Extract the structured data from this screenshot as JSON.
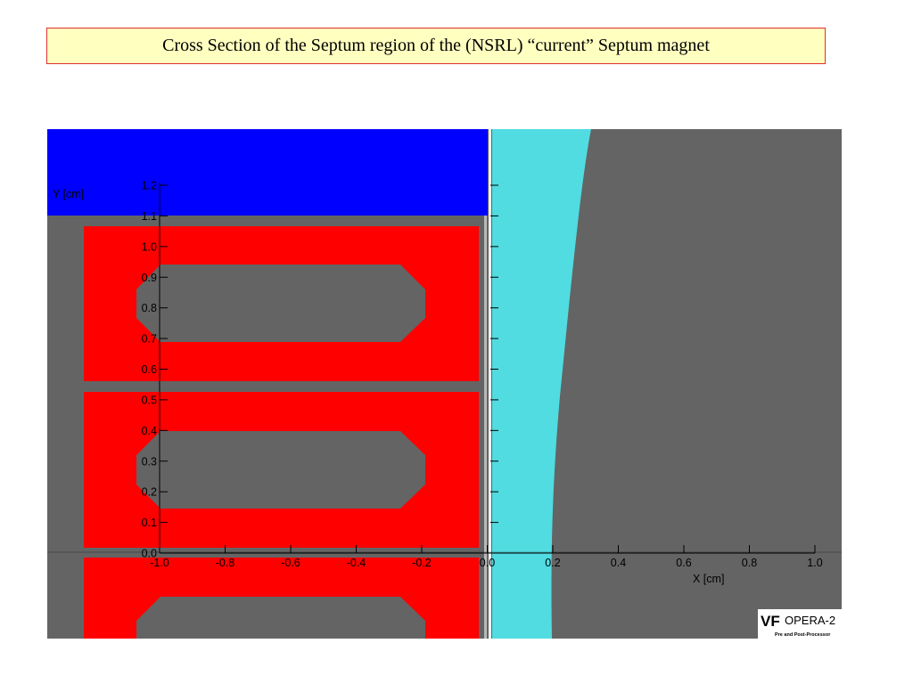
{
  "slide": {
    "title": "Cross Section of the Septum region of the (NSRL) “current” Septum  magnet"
  },
  "plot": {
    "x_axis_label": "X [cm]",
    "y_axis_label": "Y [cm]",
    "x_ticks": [
      "-1.0",
      "-0.8",
      "-0.6",
      "-0.4",
      "-0.2",
      "0.0",
      "0.2",
      "0.4",
      "0.6",
      "0.8",
      "1.0"
    ],
    "y_ticks": [
      "0.0",
      "0.1",
      "0.2",
      "0.3",
      "0.4",
      "0.5",
      "0.6",
      "0.7",
      "0.8",
      "0.9",
      "1.0",
      "1.1",
      "1.2"
    ],
    "x_range": [
      -1.0,
      1.0
    ],
    "y_range": [
      0.0,
      1.2
    ],
    "colors": {
      "background": "#646464",
      "steel_block": "#0000ff",
      "conductor": "#ff0000",
      "gap_region": "#50dce1",
      "septum_line": "#ffffff"
    }
  },
  "logo": {
    "brand": "OPERA-2",
    "subtitle": "Pre and Post-Processor",
    "mark": "VF"
  }
}
